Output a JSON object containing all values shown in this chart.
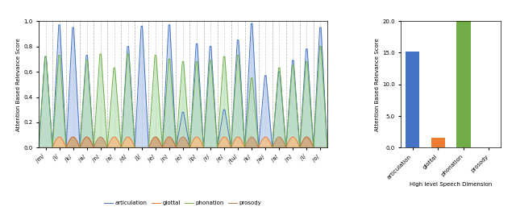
{
  "phoneme_labels": [
    "/m/",
    "/i/",
    "/k/",
    "/a/",
    "/n/",
    "/a/",
    "/d/",
    "/j/",
    "/e/",
    "/n/",
    "/e/",
    "/p/",
    "/r/",
    "/e/",
    "/tu/",
    "/k/",
    "/w/",
    "/a/",
    "/n/",
    "/l/",
    "/o/"
  ],
  "n_phonemes": 21,
  "bar_categories": [
    "articulation",
    "glottal",
    "phonation",
    "prosody"
  ],
  "bar_values": [
    15.2,
    1.6,
    20.1,
    0.0
  ],
  "bar_colors": [
    "#4472C4",
    "#ED7D31",
    "#70AD47",
    "#ED7D31"
  ],
  "art_peaks": [
    0.72,
    0.97,
    0.95,
    0.73,
    0.0,
    0.0,
    0.8,
    0.96,
    0.0,
    0.97,
    0.28,
    0.82,
    0.8,
    0.3,
    0.85,
    0.98,
    0.57,
    0.6,
    0.69,
    0.78,
    0.95
  ],
  "pho_peaks": [
    0.72,
    0.73,
    0.0,
    0.69,
    0.74,
    0.63,
    0.74,
    0.0,
    0.73,
    0.7,
    0.68,
    0.68,
    0.69,
    0.72,
    0.73,
    0.55,
    0.0,
    0.63,
    0.65,
    0.68,
    0.8
  ],
  "glo_peaks": [
    0.0,
    0.1,
    0.1,
    0.1,
    0.0,
    0.1,
    0.1,
    0.0,
    0.1,
    0.1,
    0.0,
    0.1,
    0.0,
    0.1,
    0.1,
    0.0,
    0.1,
    0.0,
    0.1,
    0.1,
    0.0
  ],
  "pro_peaks": [
    0.0,
    0.0,
    0.1,
    0.1,
    0.1,
    0.0,
    0.0,
    0.0,
    0.1,
    0.1,
    0.1,
    0.0,
    0.0,
    0.0,
    0.0,
    0.1,
    0.0,
    0.1,
    0.0,
    0.1,
    0.0
  ],
  "ylabel_left": "Attention Based Relevance Score",
  "ylabel_right": "Attention Based Relevance Score",
  "xlabel_right": "High level Speech Dimension",
  "ylim_left": [
    0.0,
    1.0
  ],
  "ylim_right": [
    0.0,
    20.0
  ],
  "bg_color": "#ffffff",
  "art_fill_color": "#AEC6E8",
  "art_line_color": "#4472C4",
  "pho_fill_color": "#B7DFB5",
  "pho_line_color": "#70AD47",
  "glo_fill_color": "#F4C08A",
  "glo_line_color": "#ED7D31",
  "pro_fill_color": "#C9A882",
  "pro_line_color": "#B87A4E",
  "dashed_line_color": "#999999"
}
